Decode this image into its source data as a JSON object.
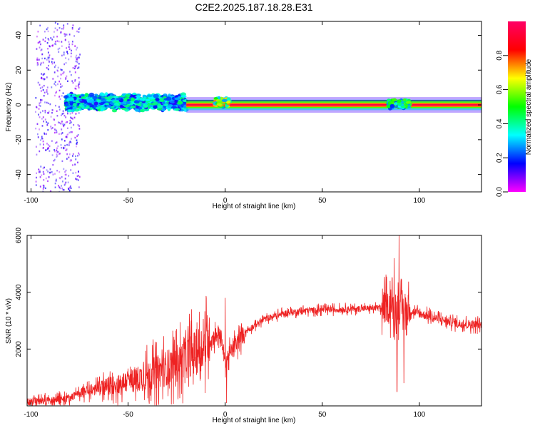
{
  "title": "C2E2.2025.187.18.28.E31",
  "chart_data": [
    {
      "type": "heatmap",
      "xlabel": "Height of straight line (km)",
      "ylabel": "Frequency (Hz)",
      "xlim": [
        -102,
        132
      ],
      "ylim": [
        -50,
        48
      ],
      "x_ticks": [
        -100,
        -50,
        0,
        50,
        100
      ],
      "y_ticks": [
        -40,
        -20,
        0,
        20,
        40
      ],
      "colorbar": {
        "label": "Normalized spectral amplitude",
        "range": [
          0,
          1
        ],
        "ticks": [
          "0.0",
          "0.2",
          "0.4",
          "0.6",
          "0.8"
        ],
        "colors": [
          "#ff00ff",
          "#0000ff",
          "#00ffff",
          "#00ff00",
          "#ffff00",
          "#ff0000",
          "#ff0066"
        ]
      },
      "features": [
        {
          "x_range": [
            -98,
            -75
          ],
          "freq_range": [
            -50,
            48
          ],
          "amplitude": 0.15,
          "note": "scattered low-amplitude noise"
        },
        {
          "x_range": [
            -82,
            -20
          ],
          "freq_center": 1.5,
          "freq_halfwidth": 5,
          "amplitude": 0.45,
          "note": "broad noisy band"
        },
        {
          "x_range": [
            -20,
            132
          ],
          "freq_center": 0,
          "freq_halfwidth": 1.5,
          "amplitude": 1.0,
          "note": "narrow carrier line"
        },
        {
          "x_range": [
            -5,
            2
          ],
          "freq_center": 1.5,
          "freq_halfwidth": 3,
          "amplitude": 0.8,
          "note": "bump near zero height"
        },
        {
          "x_range": [
            84,
            95
          ],
          "freq_center": 0.5,
          "freq_halfwidth": 3,
          "amplitude": 0.6,
          "note": "disturbance near 90 km"
        }
      ]
    },
    {
      "type": "line",
      "xlabel": "Height of straight line (km)",
      "ylabel": "SNR (10 * v/v)",
      "xlim": [
        -102,
        132
      ],
      "ylim": [
        0,
        6000
      ],
      "x_ticks": [
        -100,
        -50,
        0,
        50,
        100
      ],
      "y_ticks": [
        2000,
        4000,
        6000
      ],
      "color": "#ee2222",
      "envelope": {
        "x": [
          -102,
          -90,
          -80,
          -75,
          -60,
          -45,
          -35,
          -25,
          -15,
          -8,
          -3,
          0,
          3,
          10,
          20,
          30,
          40,
          50,
          60,
          70,
          80,
          86,
          90,
          95,
          100,
          110,
          120,
          132
        ],
        "y": [
          150,
          200,
          280,
          450,
          700,
          950,
          1200,
          1500,
          1900,
          2300,
          2600,
          1600,
          1900,
          2600,
          3050,
          3250,
          3350,
          3380,
          3400,
          3420,
          3450,
          3500,
          3400,
          3350,
          3250,
          3050,
          2900,
          2850
        ]
      },
      "spikes": [
        {
          "x": 0,
          "y": 3800
        },
        {
          "x": 0.7,
          "y": 100
        },
        {
          "x": 89.5,
          "y": 6000
        },
        {
          "x": 88.5,
          "y": 500
        },
        {
          "x": 87,
          "y": 5200
        },
        {
          "x": 92,
          "y": 800
        },
        {
          "x": 85,
          "y": 4400
        }
      ]
    }
  ]
}
